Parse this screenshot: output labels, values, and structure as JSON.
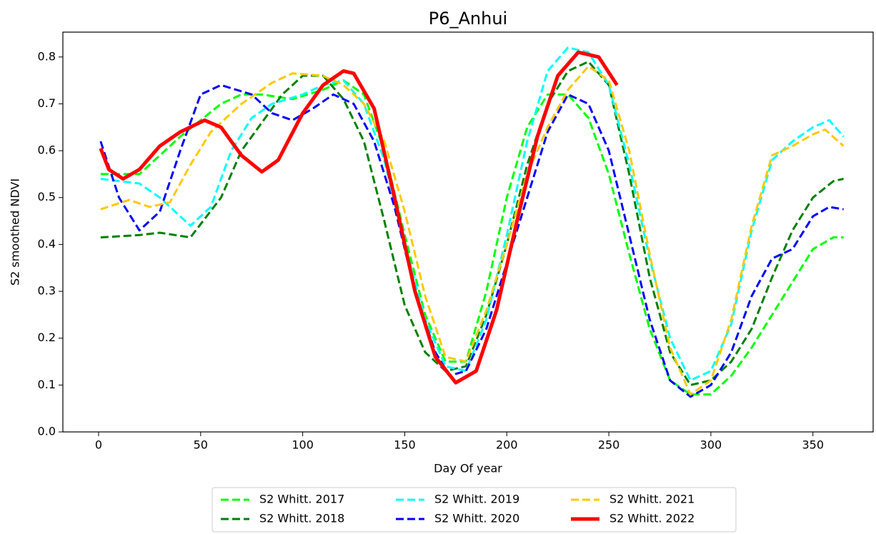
{
  "chart_data": {
    "type": "line",
    "title": "P6_Anhui",
    "x_label": "Day Of year",
    "y_label": "S2 smoothed NDVI",
    "xlim": [
      -17.5,
      379.5
    ],
    "ylim": [
      0,
      0.853
    ],
    "xticks": [
      0,
      50,
      100,
      150,
      200,
      250,
      300,
      350
    ],
    "yticks": [
      {
        "value": 0,
        "label": "0.0"
      },
      0.1,
      0.2,
      0.3,
      0.4,
      0.5,
      0.6,
      0.7,
      0.8
    ],
    "grid": false,
    "legend": "bottom",
    "series": [
      {
        "name": "S2 Whitt. 2017",
        "color": "#00ff00",
        "linestyle": "dashed",
        "x": [
          1,
          20,
          40,
          60,
          70,
          80,
          95,
          110,
          120,
          130,
          140,
          150,
          160,
          170,
          180,
          190,
          200,
          210,
          220,
          230,
          240,
          250,
          260,
          270,
          280,
          290,
          300,
          310,
          320,
          330,
          340,
          350,
          360,
          365
        ],
        "values": [
          0.55,
          0.55,
          0.63,
          0.7,
          0.72,
          0.72,
          0.71,
          0.73,
          0.75,
          0.72,
          0.6,
          0.42,
          0.25,
          0.15,
          0.15,
          0.3,
          0.5,
          0.65,
          0.72,
          0.72,
          0.67,
          0.55,
          0.38,
          0.22,
          0.11,
          0.08,
          0.08,
          0.12,
          0.18,
          0.25,
          0.32,
          0.39,
          0.415,
          0.415
        ]
      },
      {
        "name": "S2 Whitt. 2018",
        "color": "#008000",
        "linestyle": "dashed",
        "x": [
          1,
          20,
          30,
          45,
          60,
          70,
          80,
          90,
          100,
          110,
          120,
          130,
          140,
          150,
          160,
          170,
          180,
          190,
          200,
          210,
          220,
          230,
          240,
          250,
          260,
          270,
          280,
          290,
          300,
          310,
          320,
          330,
          340,
          350,
          360,
          365
        ],
        "values": [
          0.415,
          0.42,
          0.425,
          0.415,
          0.5,
          0.6,
          0.66,
          0.72,
          0.76,
          0.76,
          0.71,
          0.62,
          0.45,
          0.27,
          0.17,
          0.13,
          0.14,
          0.25,
          0.4,
          0.57,
          0.7,
          0.77,
          0.79,
          0.74,
          0.55,
          0.33,
          0.17,
          0.1,
          0.11,
          0.15,
          0.22,
          0.33,
          0.43,
          0.5,
          0.535,
          0.54
        ]
      },
      {
        "name": "S2 Whitt. 2019",
        "color": "#00ffff",
        "linestyle": "dashed",
        "x": [
          1,
          20,
          30,
          45,
          55,
          65,
          75,
          85,
          100,
          110,
          120,
          130,
          140,
          150,
          160,
          170,
          180,
          190,
          200,
          210,
          220,
          230,
          240,
          250,
          260,
          270,
          280,
          290,
          300,
          310,
          320,
          330,
          340,
          350,
          358,
          365
        ],
        "values": [
          0.54,
          0.53,
          0.5,
          0.44,
          0.48,
          0.6,
          0.67,
          0.7,
          0.72,
          0.74,
          0.75,
          0.7,
          0.58,
          0.4,
          0.24,
          0.14,
          0.13,
          0.24,
          0.42,
          0.62,
          0.77,
          0.82,
          0.81,
          0.74,
          0.57,
          0.37,
          0.2,
          0.11,
          0.13,
          0.23,
          0.43,
          0.58,
          0.62,
          0.65,
          0.665,
          0.63
        ]
      },
      {
        "name": "S2 Whitt. 2020",
        "color": "#0000ff",
        "linestyle": "dashed",
        "x": [
          1,
          10,
          20,
          30,
          40,
          50,
          60,
          75,
          85,
          95,
          105,
          115,
          125,
          135,
          145,
          155,
          165,
          172,
          180,
          190,
          200,
          210,
          220,
          230,
          240,
          250,
          260,
          270,
          280,
          290,
          300,
          310,
          320,
          330,
          340,
          350,
          358,
          365
        ],
        "values": [
          0.62,
          0.5,
          0.43,
          0.47,
          0.6,
          0.72,
          0.74,
          0.72,
          0.68,
          0.665,
          0.69,
          0.72,
          0.7,
          0.62,
          0.48,
          0.3,
          0.17,
          0.12,
          0.13,
          0.22,
          0.36,
          0.5,
          0.64,
          0.72,
          0.7,
          0.6,
          0.42,
          0.24,
          0.11,
          0.075,
          0.1,
          0.17,
          0.29,
          0.37,
          0.39,
          0.46,
          0.48,
          0.475
        ]
      },
      {
        "name": "S2 Whitt. 2021",
        "color": "#ffc800",
        "linestyle": "dashed",
        "x": [
          1,
          15,
          25,
          35,
          45,
          55,
          70,
          85,
          95,
          110,
          120,
          130,
          140,
          150,
          160,
          170,
          180,
          190,
          200,
          210,
          220,
          230,
          240,
          250,
          260,
          270,
          280,
          290,
          300,
          310,
          320,
          330,
          340,
          350,
          356,
          365
        ],
        "values": [
          0.475,
          0.495,
          0.48,
          0.49,
          0.57,
          0.64,
          0.7,
          0.745,
          0.765,
          0.76,
          0.74,
          0.7,
          0.62,
          0.47,
          0.29,
          0.16,
          0.15,
          0.26,
          0.4,
          0.55,
          0.65,
          0.73,
          0.78,
          0.75,
          0.6,
          0.38,
          0.18,
          0.08,
          0.11,
          0.24,
          0.44,
          0.59,
          0.61,
          0.635,
          0.645,
          0.61
        ]
      },
      {
        "name": "S2 Whitt. 2022",
        "color": "#ff0000",
        "linestyle": "solid",
        "x": [
          1,
          5,
          12,
          20,
          30,
          40,
          52,
          60,
          70,
          80,
          88,
          100,
          110,
          120,
          125,
          135,
          145,
          155,
          165,
          175,
          185,
          195,
          205,
          215,
          225,
          235,
          245,
          254
        ],
        "values": [
          0.605,
          0.56,
          0.54,
          0.56,
          0.61,
          0.64,
          0.665,
          0.65,
          0.59,
          0.555,
          0.58,
          0.68,
          0.74,
          0.77,
          0.765,
          0.69,
          0.5,
          0.3,
          0.16,
          0.105,
          0.13,
          0.26,
          0.45,
          0.63,
          0.76,
          0.81,
          0.8,
          0.74
        ]
      }
    ]
  }
}
